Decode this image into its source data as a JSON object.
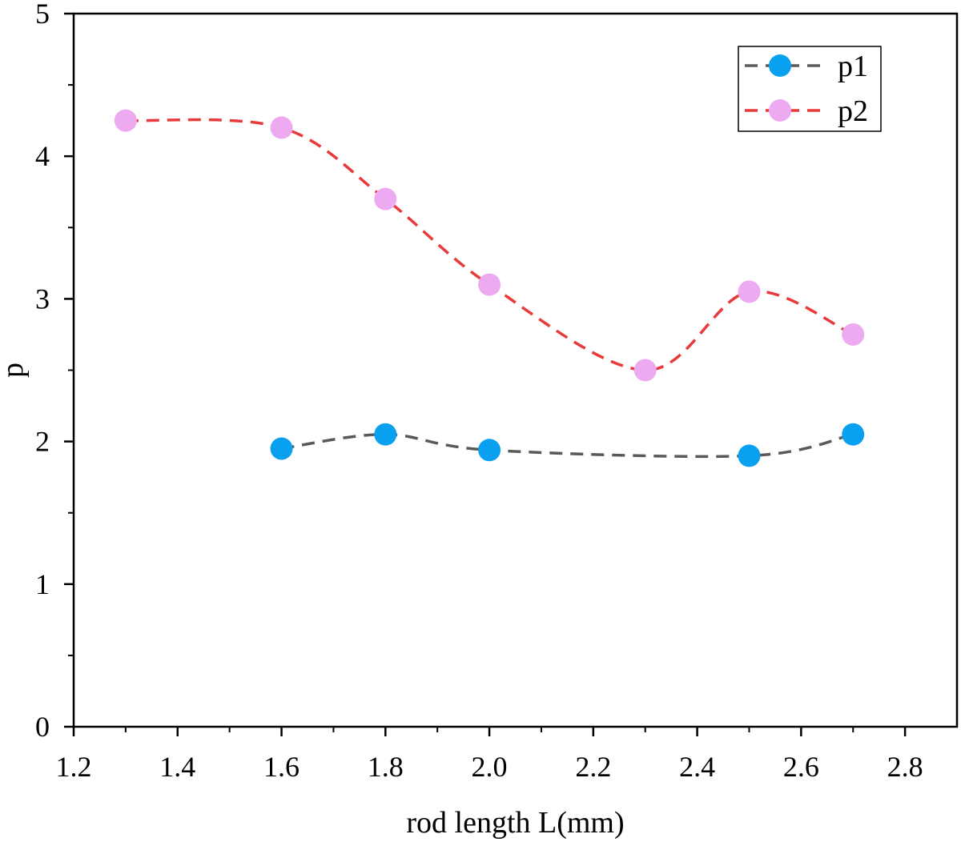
{
  "chart_data": {
    "type": "scatter",
    "xlabel": "rod length L(mm)",
    "ylabel": "p",
    "xlim": [
      1.2,
      2.9
    ],
    "ylim": [
      0,
      5
    ],
    "x_ticks": [
      "1.2",
      "1.4",
      "1.6",
      "1.8",
      "2.0",
      "2.2",
      "2.4",
      "2.6",
      "2.8"
    ],
    "y_ticks": [
      "0",
      "1",
      "2",
      "3",
      "4",
      "5"
    ],
    "legend_position": "top-right",
    "grid": false,
    "series": [
      {
        "name": "p1",
        "marker_color": "#0aa0f0",
        "line_color": "#595959",
        "line_style": "dashed-smooth",
        "x": [
          1.6,
          1.8,
          2.0,
          2.5,
          2.7
        ],
        "y": [
          1.95,
          2.05,
          1.94,
          1.9,
          2.05
        ]
      },
      {
        "name": "p2",
        "marker_color": "#eeaaf0",
        "line_color": "#e83a3a",
        "line_style": "dashed-smooth",
        "x": [
          1.3,
          1.6,
          1.8,
          2.0,
          2.3,
          2.5,
          2.7
        ],
        "y": [
          4.25,
          4.2,
          3.7,
          3.1,
          2.5,
          3.05,
          2.75
        ]
      }
    ]
  }
}
